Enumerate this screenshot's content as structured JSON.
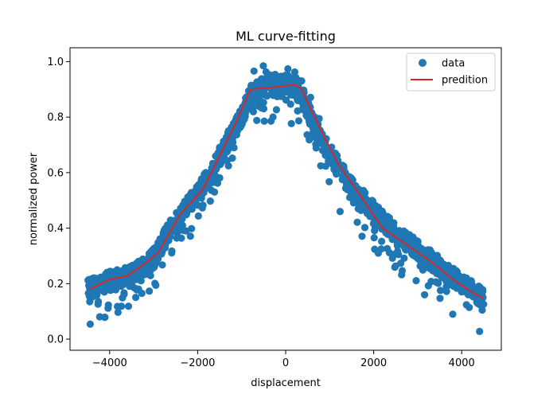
{
  "chart_data": {
    "type": "scatter",
    "title": "ML curve-fitting",
    "xlabel": "displacement",
    "ylabel": "normalized power",
    "xlim": [
      -4900,
      4900
    ],
    "ylim": [
      -0.04,
      1.05
    ],
    "xticks": [
      -4000,
      -2000,
      0,
      2000,
      4000
    ],
    "xtick_labels": [
      "−4000",
      "−2000",
      "0",
      "2000",
      "4000"
    ],
    "yticks": [
      0.0,
      0.2,
      0.4,
      0.6,
      0.8,
      1.0
    ],
    "ytick_labels": [
      "0.0",
      "0.2",
      "0.4",
      "0.6",
      "0.8",
      "1.0"
    ],
    "grid": false,
    "legend_position": "top-right",
    "series": [
      {
        "name": "data",
        "kind": "scatter",
        "color": "#1f77b4",
        "x_range": [
          -4500,
          4500
        ],
        "center_curve": {
          "x": [
            -4500,
            -4000,
            -3500,
            -3000,
            -2500,
            -2000,
            -1500,
            -1000,
            -800,
            -500,
            -200,
            0,
            200,
            400,
            800,
            1200,
            1500,
            2000,
            2500,
            3000,
            3500,
            4000,
            4500
          ],
          "y": [
            0.18,
            0.21,
            0.23,
            0.29,
            0.43,
            0.52,
            0.66,
            0.8,
            0.88,
            0.91,
            0.91,
            0.92,
            0.91,
            0.86,
            0.72,
            0.62,
            0.55,
            0.46,
            0.38,
            0.32,
            0.26,
            0.2,
            0.15
          ]
        },
        "noise_band": 0.035,
        "outlier_depth": 0.12
      },
      {
        "name": "predition",
        "kind": "line",
        "color": "#d62728",
        "x": [
          -4450,
          -4000,
          -3600,
          -3300,
          -2900,
          -2400,
          -1900,
          -1500,
          -1100,
          -800,
          -500,
          0,
          200,
          350,
          600,
          900,
          1200,
          1600,
          2200,
          2800,
          3300,
          3800,
          4300,
          4500
        ],
        "y": [
          0.18,
          0.215,
          0.228,
          0.26,
          0.31,
          0.45,
          0.535,
          0.66,
          0.79,
          0.9,
          0.905,
          0.912,
          0.918,
          0.905,
          0.82,
          0.72,
          0.63,
          0.54,
          0.4,
          0.335,
          0.28,
          0.215,
          0.162,
          0.148
        ]
      }
    ]
  }
}
